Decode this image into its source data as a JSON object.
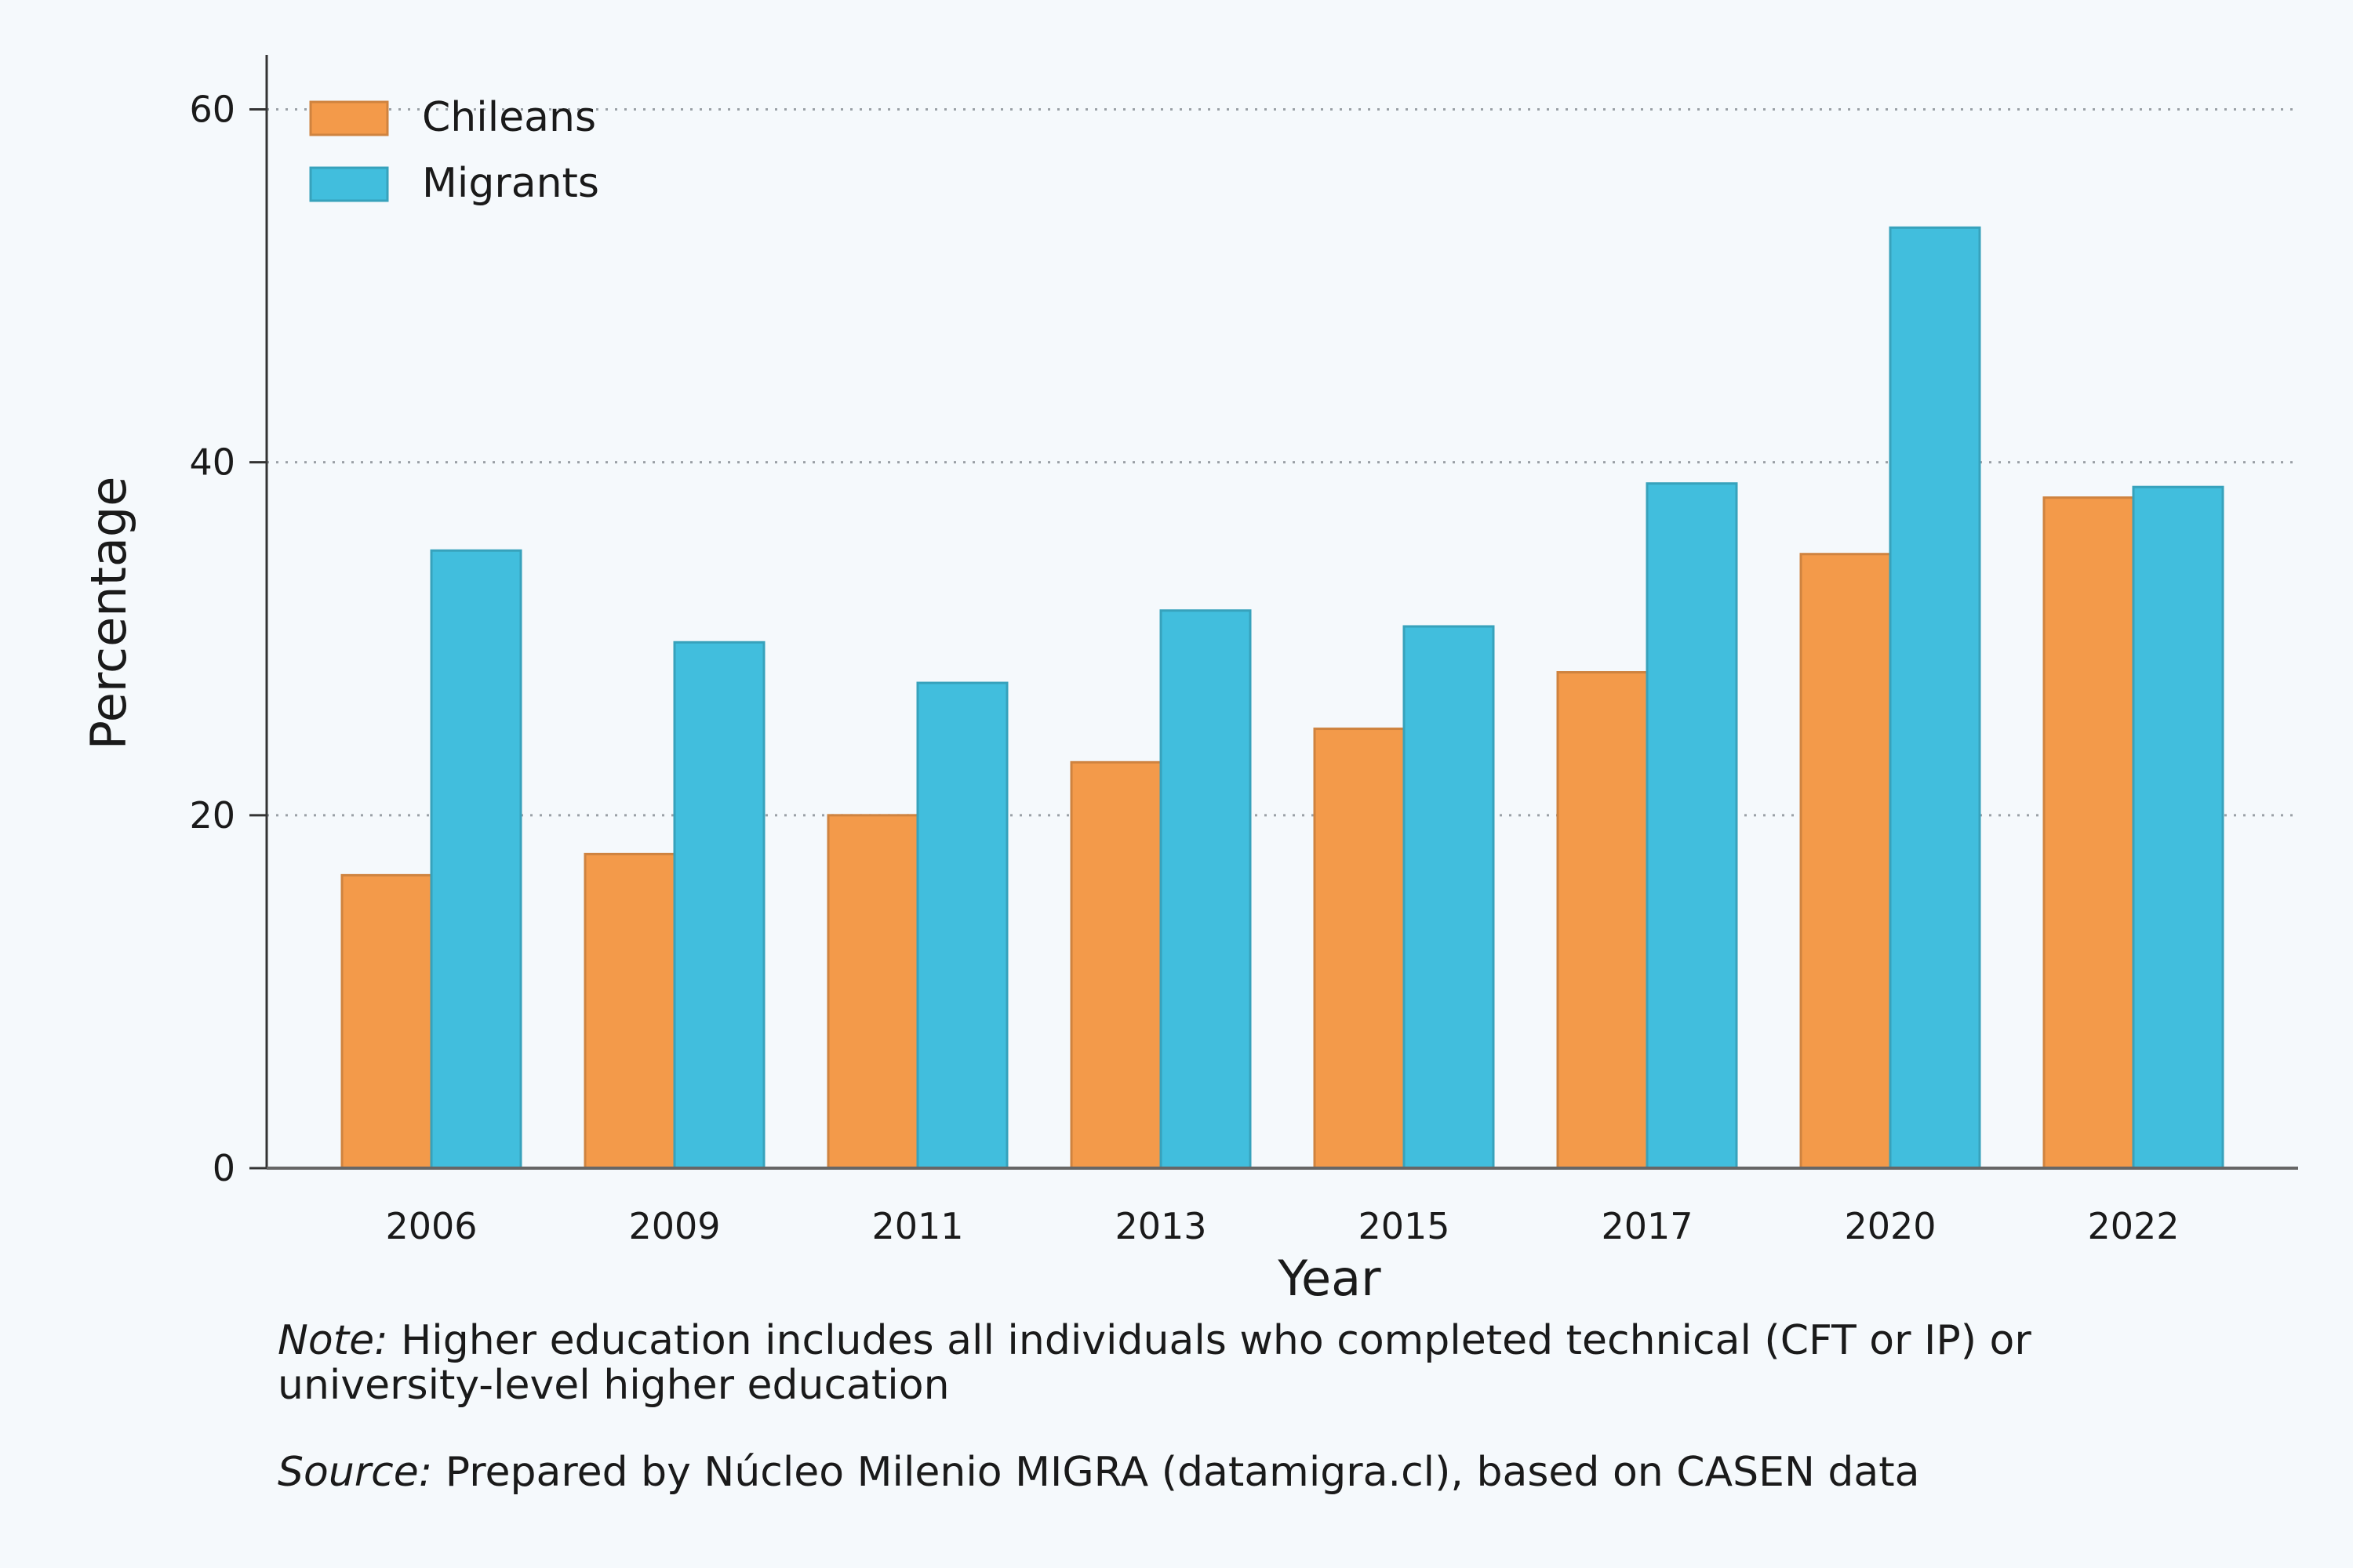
{
  "chart_data": {
    "type": "bar",
    "categories": [
      "2006",
      "2009",
      "2011",
      "2013",
      "2015",
      "2017",
      "2020",
      "2022"
    ],
    "series": [
      {
        "name": "Chileans",
        "color": "#f39a4a",
        "values": [
          16.6,
          17.8,
          20.0,
          23.0,
          24.9,
          28.1,
          34.8,
          38.0
        ]
      },
      {
        "name": "Migrants",
        "color": "#41bedd",
        "values": [
          35.0,
          29.8,
          27.5,
          31.6,
          30.7,
          38.8,
          53.3,
          38.6
        ]
      }
    ],
    "xlabel": "Year",
    "ylabel": "Percentage",
    "ylim": [
      0,
      63
    ],
    "yticks": [
      0,
      20,
      40,
      60
    ],
    "grid": "horizontal dotted",
    "legend_position": "top-left"
  },
  "notes": {
    "note_lead": "Note:",
    "note_text": " Higher education includes all individuals who completed technical (CFT or IP) or university-level higher education",
    "source_lead": "Source:",
    "source_text": " Prepared by Núcleo Milenio MIGRA (datamigra.cl), based on CASEN data"
  }
}
